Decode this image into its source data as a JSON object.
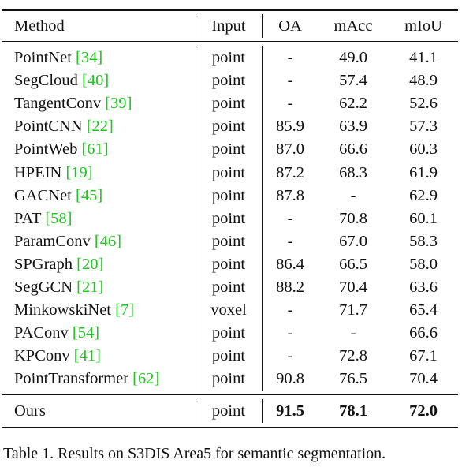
{
  "table": {
    "header": [
      "Method",
      "Input",
      "OA",
      "mAcc",
      "mIoU"
    ],
    "rows": [
      {
        "method": "PointNet",
        "ref": "[34]",
        "cells": [
          "point",
          "-",
          "49.0",
          "41.1"
        ]
      },
      {
        "method": "SegCloud",
        "ref": "[40]",
        "cells": [
          "point",
          "-",
          "57.4",
          "48.9"
        ]
      },
      {
        "method": "TangentConv",
        "ref": "[39]",
        "cells": [
          "point",
          "-",
          "62.2",
          "52.6"
        ]
      },
      {
        "method": "PointCNN",
        "ref": "[22]",
        "cells": [
          "point",
          "85.9",
          "63.9",
          "57.3"
        ]
      },
      {
        "method": "PointWeb",
        "ref": "[61]",
        "cells": [
          "point",
          "87.0",
          "66.6",
          "60.3"
        ]
      },
      {
        "method": "HPEIN",
        "ref": "[19]",
        "cells": [
          "point",
          "87.2",
          "68.3",
          "61.9"
        ]
      },
      {
        "method": "GACNet",
        "ref": "[45]",
        "cells": [
          "point",
          "87.8",
          "-",
          "62.9"
        ]
      },
      {
        "method": "PAT",
        "ref": "[58]",
        "cells": [
          "point",
          "-",
          "70.8",
          "60.1"
        ]
      },
      {
        "method": "ParamConv",
        "ref": "[46]",
        "cells": [
          "point",
          "-",
          "67.0",
          "58.3"
        ]
      },
      {
        "method": "SPGraph",
        "ref": "[20]",
        "cells": [
          "point",
          "86.4",
          "66.5",
          "58.0"
        ]
      },
      {
        "method": "SegGCN",
        "ref": "[21]",
        "cells": [
          "point",
          "88.2",
          "70.4",
          "63.6"
        ]
      },
      {
        "method": "MinkowskiNet",
        "ref": "[7]",
        "cells": [
          "voxel",
          "-",
          "71.7",
          "65.4"
        ]
      },
      {
        "method": "PAConv",
        "ref": "[54]",
        "cells": [
          "point",
          "-",
          "-",
          "66.6"
        ]
      },
      {
        "method": "KPConv",
        "ref": "[41]",
        "cells": [
          "point",
          "-",
          "72.8",
          "67.1"
        ]
      },
      {
        "method": "PointTransformer",
        "ref": "[62]",
        "cells": [
          "point",
          "90.8",
          "76.5",
          "70.4"
        ]
      }
    ],
    "ours": {
      "method": "Ours",
      "cells": [
        "point",
        "91.5",
        "78.1",
        "72.0"
      ]
    }
  },
  "caption": "Table 1. Results on S3DIS Area5 for semantic segmentation."
}
